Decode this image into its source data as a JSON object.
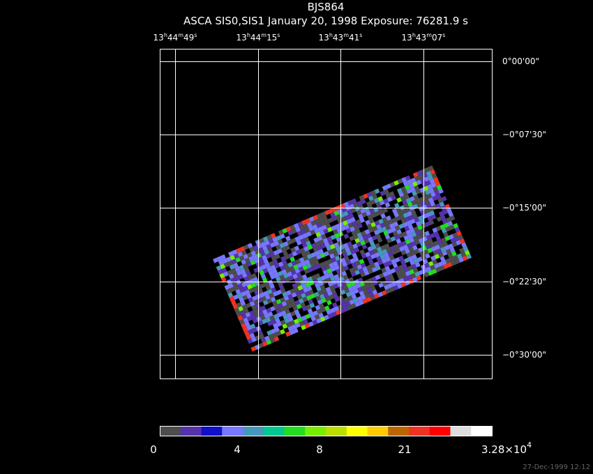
{
  "header": {
    "title": "BJS864",
    "subtitle": "ASCA SIS0,SIS1 January 20, 1998 Exposure: 76281.9 s"
  },
  "ra_labels": [
    {
      "h": "13",
      "m": "44",
      "s": "49"
    },
    {
      "h": "13",
      "m": "44",
      "s": "15"
    },
    {
      "h": "13",
      "m": "43",
      "s": "41"
    },
    {
      "h": "13",
      "m": "43",
      "s": "07"
    }
  ],
  "ra_units": {
    "h": "h",
    "m": "m",
    "s": "s"
  },
  "dec_labels": [
    "0°00'00\"",
    "−0°07'30\"",
    "−0°15'00\"",
    "−0°22'30\"",
    "−0°30'00\""
  ],
  "colorbar": {
    "colors": [
      "#4d4d4d",
      "#5533aa",
      "#1010c8",
      "#7777ff",
      "#4499bb",
      "#00c890",
      "#22dd22",
      "#77ee00",
      "#bbdd00",
      "#ffff00",
      "#ffcc00",
      "#bb6600",
      "#ee3322",
      "#ff0000",
      "#dddddd",
      "#ffffff"
    ],
    "labels": [
      "0",
      "4",
      "8",
      "21"
    ],
    "max_label": {
      "mantissa": "3.28×10",
      "exponent": "4"
    }
  },
  "footer": "27-Dec-1999 12:12"
}
